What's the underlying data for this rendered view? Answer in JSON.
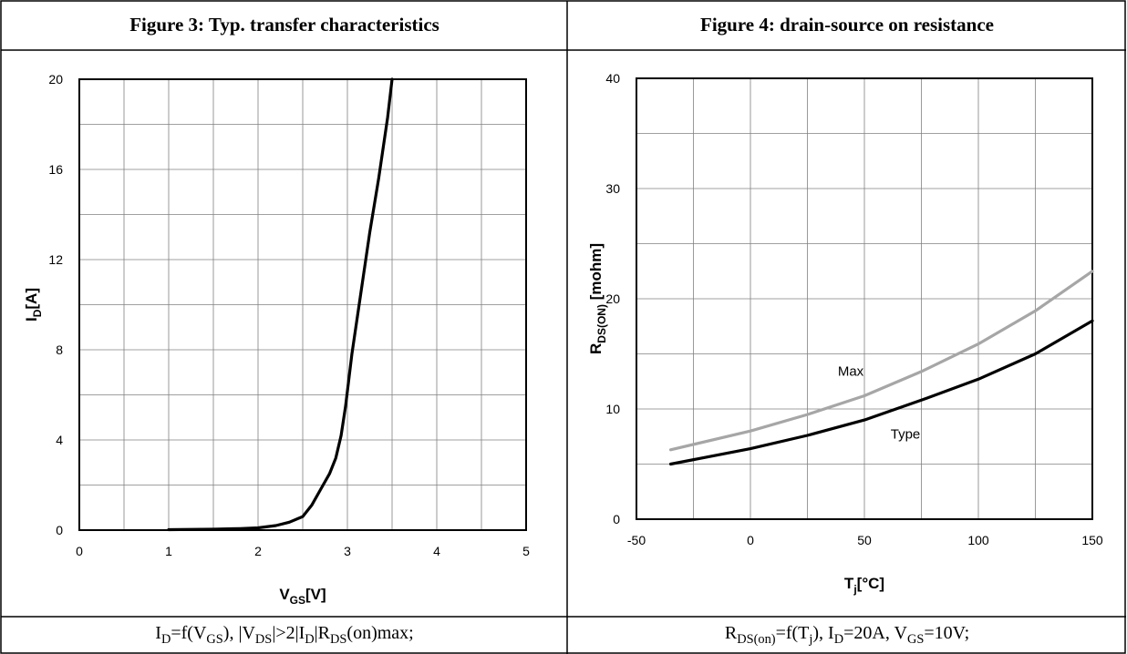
{
  "figure3": {
    "title": "Figure 3: Typ. transfer characteristics",
    "caption_parts": [
      "I",
      "D",
      "=f(V",
      "GS",
      "), |V",
      "DS",
      "|>2|I",
      "D",
      "|R",
      "DS",
      "(on)max;"
    ],
    "chart_data": {
      "type": "line",
      "xlabel_main": "V",
      "xlabel_sub": "GS",
      "xlabel_unit": "[V]",
      "ylabel_main": "I",
      "ylabel_sub": "D",
      "ylabel_unit": "[A]",
      "xlim": [
        0,
        5
      ],
      "ylim": [
        0,
        20
      ],
      "x_ticks": [
        "0",
        "1",
        "2",
        "3",
        "4",
        "5"
      ],
      "y_ticks": [
        "0",
        "4",
        "8",
        "12",
        "16",
        "20"
      ],
      "grid": true,
      "series": [
        {
          "color": "#000000",
          "x": [
            1.0,
            1.5,
            1.8,
            2.0,
            2.2,
            2.35,
            2.5,
            2.6,
            2.7,
            2.8,
            2.87,
            2.93,
            2.98,
            3.05,
            3.15,
            3.25,
            3.35,
            3.45,
            3.5
          ],
          "y": [
            0.02,
            0.04,
            0.07,
            0.1,
            0.2,
            0.35,
            0.6,
            1.1,
            1.8,
            2.5,
            3.2,
            4.2,
            5.5,
            7.8,
            10.5,
            13.2,
            15.6,
            18.3,
            20
          ]
        }
      ]
    }
  },
  "figure4": {
    "title": "Figure 4: drain-source on resistance",
    "caption_parts": [
      "R",
      "DS(on)",
      "=f(T",
      "j",
      "), I",
      "D",
      "=20A, V",
      "GS",
      "=10V;"
    ],
    "chart_data": {
      "type": "line",
      "xlabel_main": "T",
      "xlabel_sub": "j",
      "xlabel_unit": "[°C]",
      "ylabel_main": "R",
      "ylabel_sub": "DS(ON)",
      "ylabel_unit": " [mohm]",
      "xlim": [
        -50,
        150
      ],
      "ylim": [
        0,
        40
      ],
      "x_ticks": [
        "-50",
        "0",
        "50",
        "100",
        "150"
      ],
      "y_ticks": [
        "0",
        "10",
        "20",
        "30",
        "40"
      ],
      "grid": true,
      "series": [
        {
          "name": "Max",
          "color": "#a6a6a6",
          "x": [
            -35,
            0,
            25,
            50,
            75,
            100,
            125,
            150
          ],
          "y": [
            6.3,
            8.0,
            9.5,
            11.2,
            13.4,
            15.9,
            18.9,
            22.5
          ]
        },
        {
          "name": "Type",
          "color": "#000000",
          "x": [
            -35,
            0,
            25,
            50,
            75,
            100,
            125,
            150
          ],
          "y": [
            5.0,
            6.4,
            7.6,
            9.0,
            10.8,
            12.7,
            15.0,
            18.0
          ]
        }
      ]
    }
  }
}
